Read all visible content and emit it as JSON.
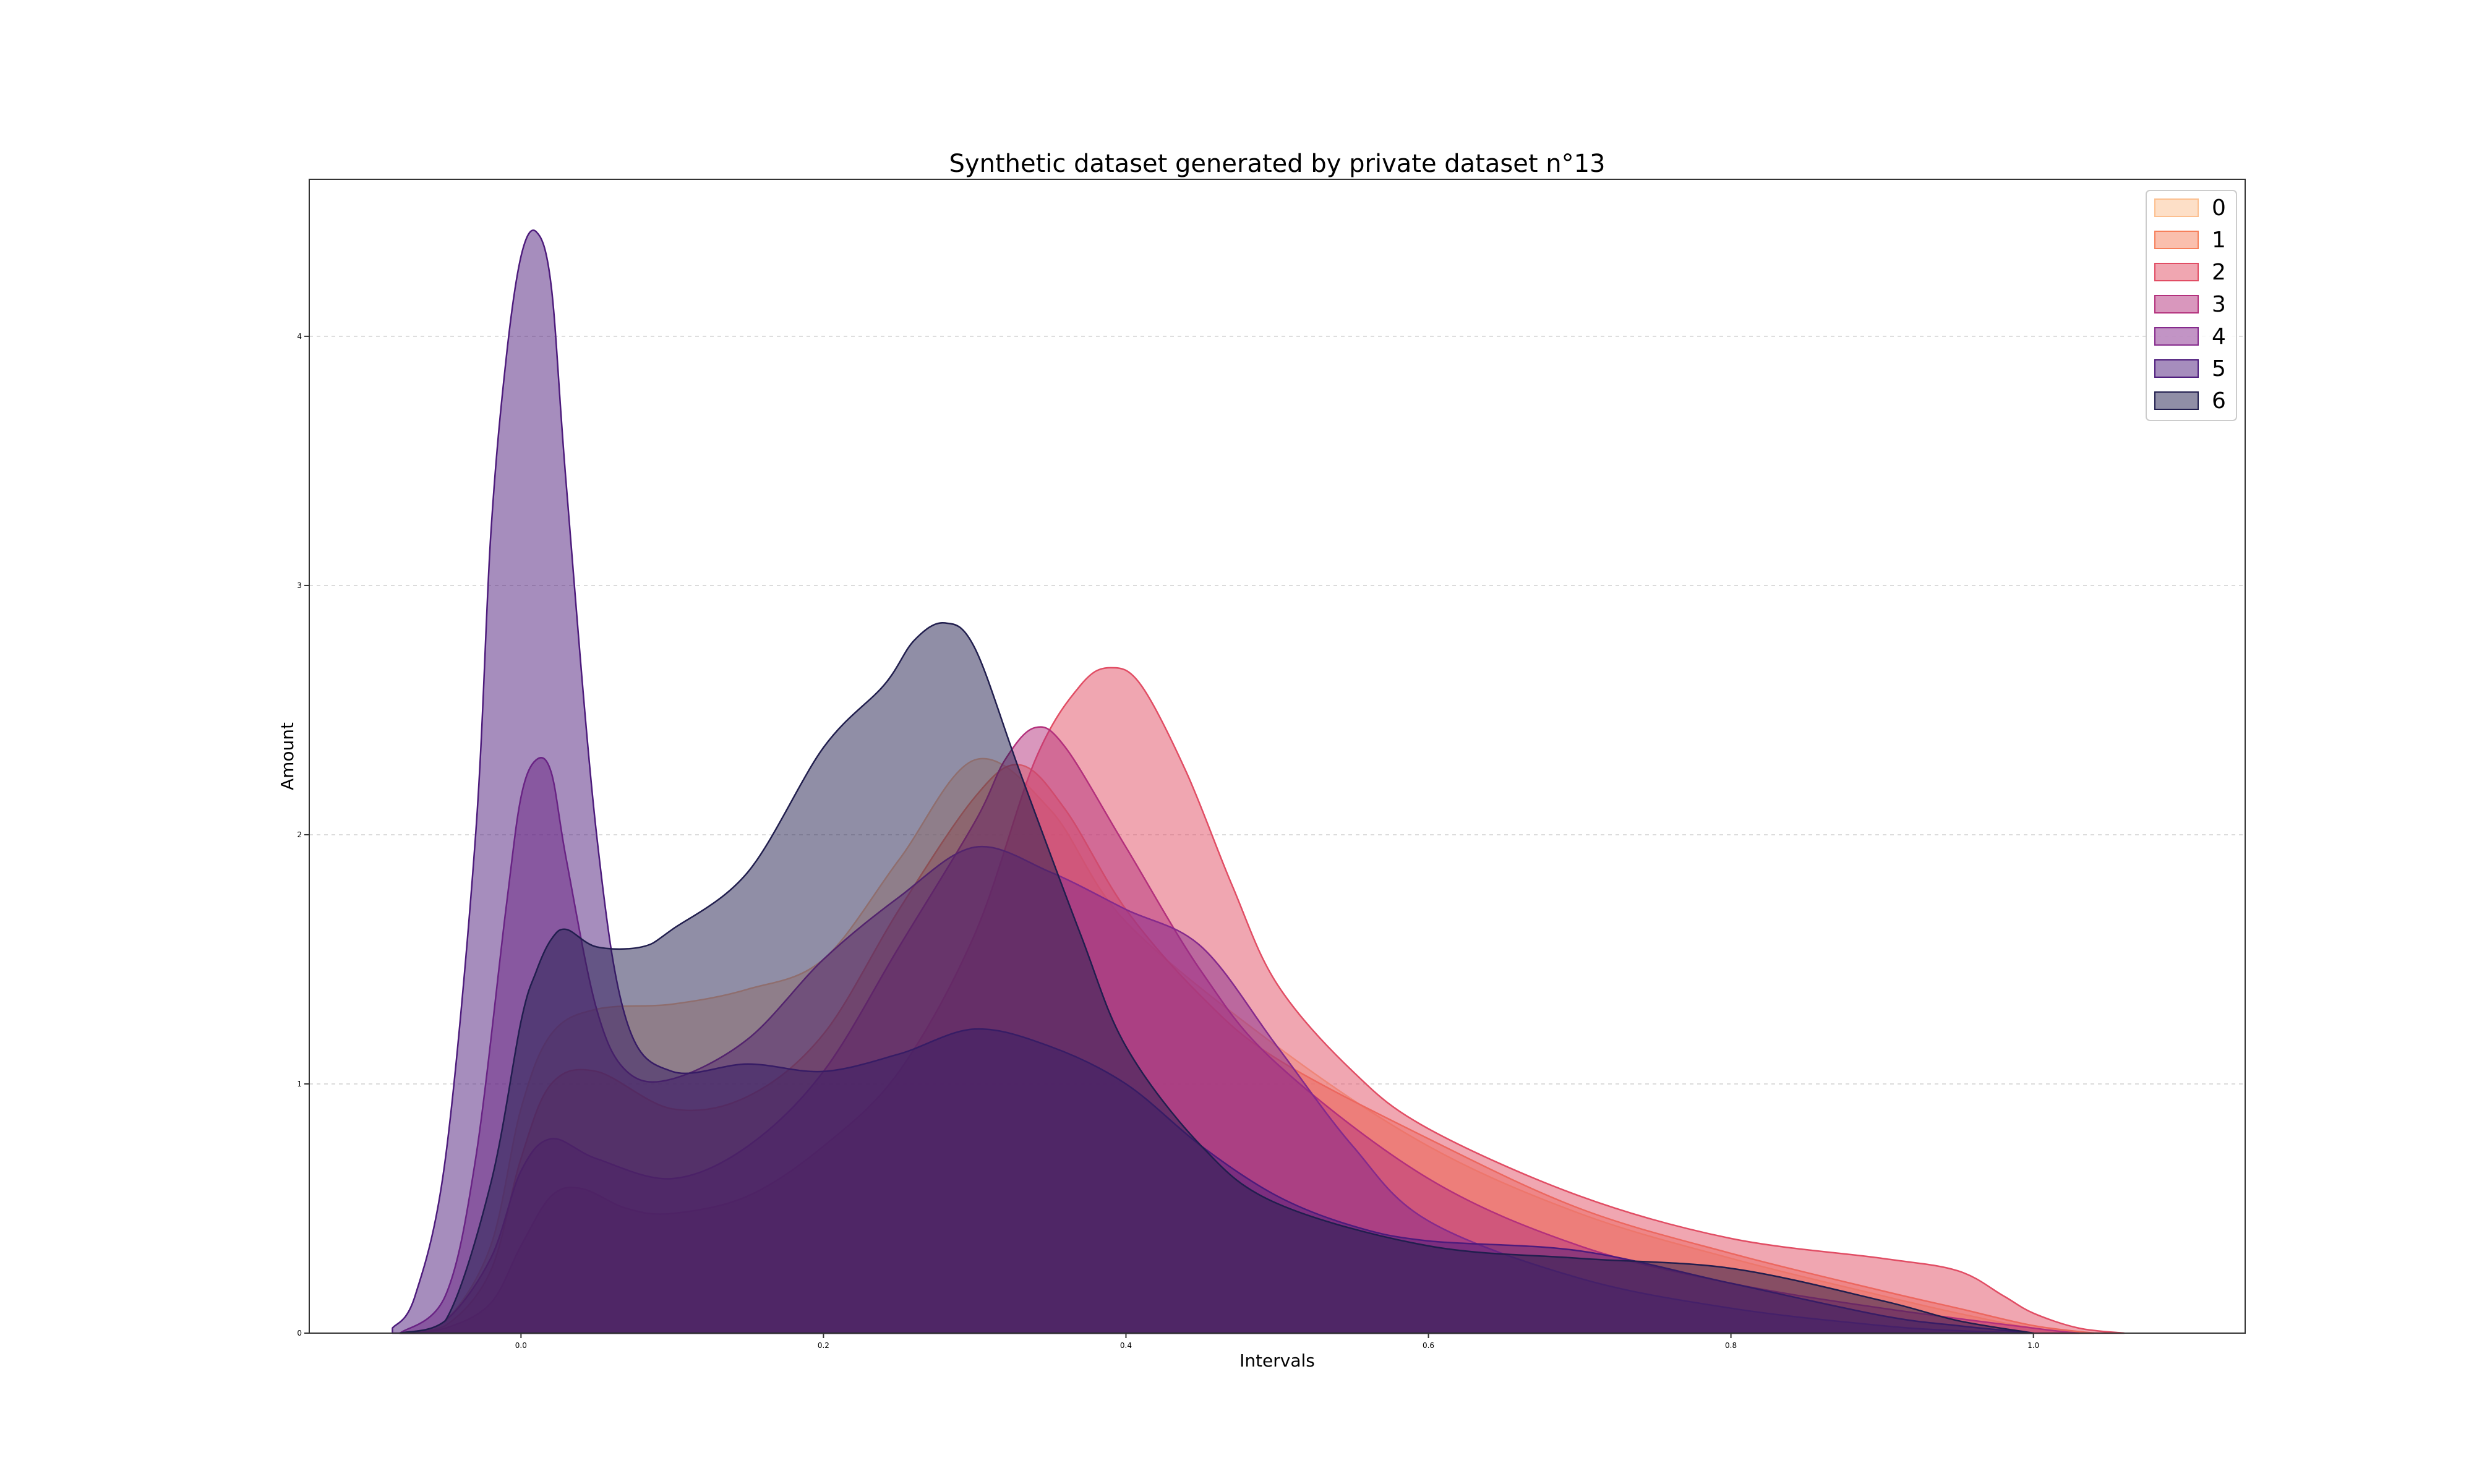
{
  "chart_data": {
    "type": "area",
    "title": "Synthetic dataset generated by private dataset n°13",
    "xlabel": "Intervals",
    "ylabel": "Amount",
    "xlim": [
      -0.14,
      1.14
    ],
    "ylim": [
      0,
      4.63
    ],
    "xticks": [
      "0.0",
      "0.2",
      "0.4",
      "0.6",
      "0.8",
      "1.0"
    ],
    "yticks": [
      "0",
      "1",
      "2",
      "3",
      "4"
    ],
    "grid": "horizontal dashed",
    "legend_position": "top-right",
    "fill_opacity": 0.5,
    "series": [
      {
        "name": "0",
        "color": "#fcbf8f",
        "x": [
          -0.08,
          -0.05,
          -0.02,
          0.0,
          0.02,
          0.05,
          0.1,
          0.15,
          0.2,
          0.25,
          0.3,
          0.35,
          0.4,
          0.5,
          0.6,
          0.7,
          0.8,
          0.9,
          0.95,
          1.0,
          1.04
        ],
        "y": [
          0.0,
          0.05,
          0.35,
          0.9,
          1.2,
          1.3,
          1.32,
          1.38,
          1.5,
          1.9,
          2.3,
          2.1,
          1.65,
          1.15,
          0.75,
          0.48,
          0.3,
          0.15,
          0.08,
          0.02,
          0.0
        ]
      },
      {
        "name": "1",
        "color": "#f6805b",
        "x": [
          -0.08,
          -0.05,
          -0.02,
          0.0,
          0.02,
          0.05,
          0.1,
          0.15,
          0.2,
          0.25,
          0.3,
          0.33,
          0.36,
          0.4,
          0.45,
          0.5,
          0.6,
          0.7,
          0.8,
          0.9,
          0.95,
          1.0,
          1.04
        ],
        "y": [
          0.0,
          0.03,
          0.25,
          0.7,
          1.0,
          1.05,
          0.9,
          0.95,
          1.2,
          1.7,
          2.15,
          2.28,
          2.1,
          1.7,
          1.35,
          1.1,
          0.78,
          0.5,
          0.32,
          0.17,
          0.1,
          0.03,
          0.0
        ]
      },
      {
        "name": "2",
        "color": "#e14d64",
        "x": [
          -0.08,
          -0.05,
          -0.02,
          0.0,
          0.02,
          0.04,
          0.07,
          0.1,
          0.15,
          0.2,
          0.25,
          0.3,
          0.34,
          0.37,
          0.39,
          0.41,
          0.44,
          0.47,
          0.5,
          0.55,
          0.6,
          0.7,
          0.8,
          0.9,
          0.95,
          0.98,
          1.0,
          1.03,
          1.06
        ],
        "y": [
          0.0,
          0.02,
          0.12,
          0.35,
          0.55,
          0.58,
          0.5,
          0.48,
          0.55,
          0.75,
          1.05,
          1.6,
          2.3,
          2.6,
          2.67,
          2.6,
          2.25,
          1.8,
          1.4,
          1.05,
          0.82,
          0.55,
          0.38,
          0.3,
          0.25,
          0.15,
          0.08,
          0.02,
          0.0
        ]
      },
      {
        "name": "3",
        "color": "#b3307c",
        "x": [
          -0.08,
          -0.05,
          -0.02,
          0.0,
          0.02,
          0.05,
          0.1,
          0.15,
          0.2,
          0.25,
          0.3,
          0.32,
          0.34,
          0.36,
          0.4,
          0.45,
          0.5,
          0.6,
          0.7,
          0.8,
          0.9,
          1.0,
          1.03
        ],
        "y": [
          0.0,
          0.05,
          0.3,
          0.65,
          0.78,
          0.7,
          0.62,
          0.75,
          1.05,
          1.55,
          2.05,
          2.3,
          2.43,
          2.35,
          1.95,
          1.45,
          1.08,
          0.62,
          0.35,
          0.2,
          0.1,
          0.02,
          0.0
        ]
      },
      {
        "name": "4",
        "color": "#852a8c",
        "x": [
          -0.08,
          -0.05,
          -0.03,
          -0.01,
          0.0,
          0.01,
          0.02,
          0.03,
          0.05,
          0.07,
          0.1,
          0.15,
          0.2,
          0.25,
          0.3,
          0.35,
          0.4,
          0.45,
          0.5,
          0.55,
          0.6,
          0.7,
          0.8,
          0.9,
          0.95,
          1.0
        ],
        "y": [
          0.0,
          0.15,
          0.7,
          1.7,
          2.15,
          2.3,
          2.25,
          1.9,
          1.3,
          1.05,
          1.02,
          1.18,
          1.5,
          1.75,
          1.95,
          1.85,
          1.7,
          1.55,
          1.15,
          0.75,
          0.45,
          0.22,
          0.1,
          0.03,
          0.01,
          0.0
        ]
      },
      {
        "name": "5",
        "color": "#4d1b7c",
        "x": [
          -0.085,
          -0.07,
          -0.05,
          -0.03,
          -0.02,
          -0.01,
          0.0,
          0.01,
          0.02,
          0.03,
          0.05,
          0.07,
          0.1,
          0.15,
          0.2,
          0.25,
          0.3,
          0.35,
          0.4,
          0.45,
          0.5,
          0.55,
          0.6,
          0.7,
          0.8,
          0.9,
          0.95,
          1.0
        ],
        "y": [
          0.02,
          0.15,
          0.7,
          2.0,
          3.2,
          3.9,
          4.32,
          4.42,
          4.2,
          3.4,
          2.0,
          1.25,
          1.05,
          1.08,
          1.05,
          1.12,
          1.22,
          1.15,
          1.0,
          0.75,
          0.55,
          0.43,
          0.37,
          0.33,
          0.2,
          0.07,
          0.03,
          0.0
        ]
      },
      {
        "name": "6",
        "color": "#211e4e",
        "x": [
          -0.08,
          -0.05,
          -0.02,
          0.0,
          0.01,
          0.02,
          0.03,
          0.05,
          0.08,
          0.1,
          0.15,
          0.2,
          0.24,
          0.26,
          0.28,
          0.3,
          0.33,
          0.37,
          0.4,
          0.45,
          0.5,
          0.6,
          0.7,
          0.8,
          0.9,
          0.95,
          1.0
        ],
        "y": [
          0.0,
          0.05,
          0.6,
          1.25,
          1.45,
          1.58,
          1.62,
          1.55,
          1.55,
          1.62,
          1.85,
          2.35,
          2.6,
          2.78,
          2.85,
          2.75,
          2.25,
          1.6,
          1.15,
          0.75,
          0.52,
          0.35,
          0.3,
          0.26,
          0.13,
          0.05,
          0.0
        ]
      }
    ]
  }
}
